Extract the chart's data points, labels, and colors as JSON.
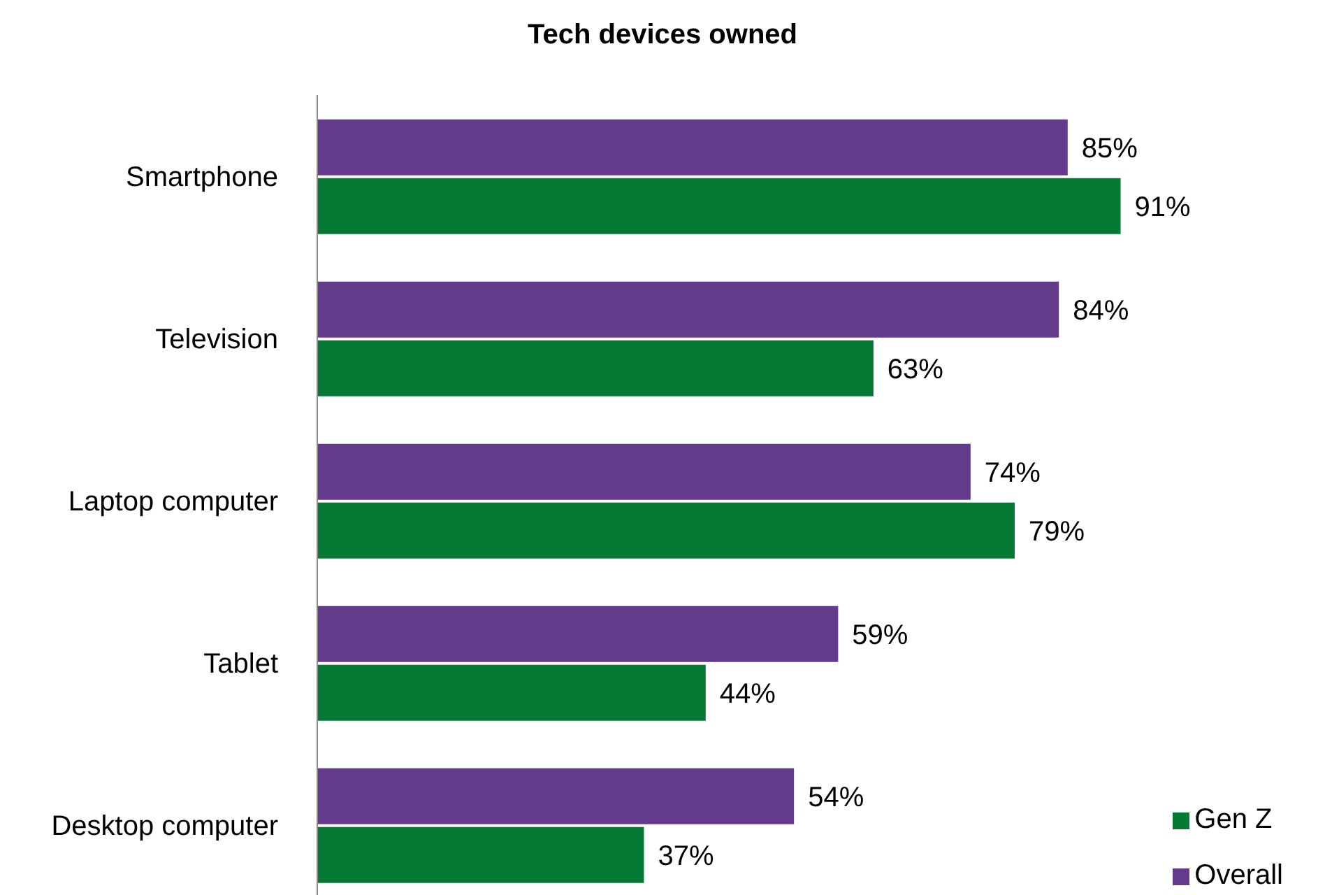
{
  "chart_data": {
    "type": "bar",
    "orientation": "horizontal",
    "title": "Tech devices owned",
    "categories": [
      "Smartphone",
      "Television",
      "Laptop computer",
      "Tablet",
      "Desktop computer"
    ],
    "legend": "bottom right",
    "grid": false,
    "series": [
      {
        "name": "Overall",
        "color": "#643a8c",
        "values": [
          85,
          84,
          74,
          59,
          54
        ],
        "value_labels": [
          "85%",
          "84%",
          "74%",
          "59%",
          "54%"
        ]
      },
      {
        "name": "Gen Z",
        "color": "#057a35",
        "values": [
          91,
          63,
          79,
          44,
          37
        ],
        "value_labels": [
          "91%",
          "63%",
          "79%",
          "44%",
          "37%"
        ]
      }
    ]
  }
}
